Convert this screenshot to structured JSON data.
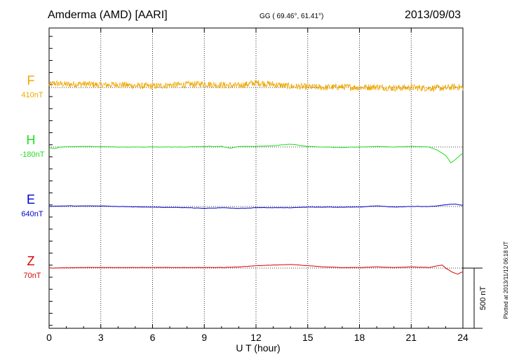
{
  "header": {
    "station": "Amderma (AMD)  [AARI]",
    "coords": "GG ( 69.46°,  61.41°)",
    "date": "2013/09/03"
  },
  "plotted_note": "Plotted at 2013/11/12 06:18 UT",
  "scale_bar_label": "500 nT",
  "colors": {
    "F": "#f0a800",
    "H": "#22dd22",
    "E": "#0000cc",
    "Z": "#dd0000"
  },
  "chart_data": {
    "type": "line",
    "xlabel": "U T (hour)",
    "x_ticks": [
      "0",
      "3",
      "6",
      "9",
      "12",
      "15",
      "18",
      "21",
      "24"
    ],
    "xlim": [
      0,
      24
    ],
    "grid": "dotted vertical every 3 h; dotted baseline per channel",
    "channels": [
      {
        "name": "F",
        "baseline": "410nT",
        "base_y_offset_nT": 0,
        "points": [
          [
            0,
            20
          ],
          [
            0.3,
            35
          ],
          [
            1,
            25
          ],
          [
            2,
            30
          ],
          [
            3,
            20
          ],
          [
            4,
            25
          ],
          [
            5,
            15
          ],
          [
            6,
            10
          ],
          [
            7,
            20
          ],
          [
            8,
            25
          ],
          [
            9,
            30
          ],
          [
            10,
            20
          ],
          [
            11,
            15
          ],
          [
            12,
            40
          ],
          [
            13,
            25
          ],
          [
            14,
            10
          ],
          [
            15,
            5
          ],
          [
            16,
            0
          ],
          [
            17,
            5
          ],
          [
            18,
            0
          ],
          [
            19,
            5
          ],
          [
            20,
            -5
          ],
          [
            21,
            0
          ],
          [
            22,
            -5
          ],
          [
            23,
            -5
          ],
          [
            23.5,
            5
          ],
          [
            24,
            0
          ]
        ],
        "noise_nT": 55
      },
      {
        "name": "H",
        "baseline": "-180nT",
        "points": [
          [
            0,
            -5
          ],
          [
            0.3,
            -15
          ],
          [
            0.6,
            0
          ],
          [
            2,
            5
          ],
          [
            4,
            0
          ],
          [
            6,
            0
          ],
          [
            7,
            0
          ],
          [
            8,
            0
          ],
          [
            9,
            5
          ],
          [
            10,
            5
          ],
          [
            10.5,
            -10
          ],
          [
            11,
            5
          ],
          [
            12,
            5
          ],
          [
            13,
            10
          ],
          [
            14,
            25
          ],
          [
            15,
            5
          ],
          [
            16,
            0
          ],
          [
            17,
            -5
          ],
          [
            18,
            0
          ],
          [
            19,
            5
          ],
          [
            20,
            0
          ],
          [
            21,
            5
          ],
          [
            22,
            0
          ],
          [
            22.5,
            -25
          ],
          [
            23,
            -70
          ],
          [
            23.3,
            -130
          ],
          [
            23.6,
            -100
          ],
          [
            24,
            -50
          ]
        ],
        "noise_nT": 6
      },
      {
        "name": "E",
        "baseline": "640nT",
        "points": [
          [
            0,
            0
          ],
          [
            1,
            5
          ],
          [
            2,
            5
          ],
          [
            3,
            5
          ],
          [
            4,
            0
          ],
          [
            6,
            -5
          ],
          [
            8,
            -10
          ],
          [
            9,
            -15
          ],
          [
            10,
            -10
          ],
          [
            11,
            -15
          ],
          [
            12,
            -10
          ],
          [
            13,
            -10
          ],
          [
            14,
            -10
          ],
          [
            15,
            -5
          ],
          [
            16,
            -5
          ],
          [
            18,
            -5
          ],
          [
            19,
            5
          ],
          [
            20,
            -5
          ],
          [
            21,
            0
          ],
          [
            22,
            0
          ],
          [
            22.5,
            5
          ],
          [
            23,
            15
          ],
          [
            23.5,
            20
          ],
          [
            24,
            10
          ]
        ],
        "noise_nT": 5
      },
      {
        "name": "Z",
        "baseline": "70nT",
        "points": [
          [
            0,
            0
          ],
          [
            2,
            5
          ],
          [
            4,
            5
          ],
          [
            6,
            5
          ],
          [
            8,
            5
          ],
          [
            9,
            5
          ],
          [
            10,
            5
          ],
          [
            11,
            10
          ],
          [
            12,
            20
          ],
          [
            13,
            25
          ],
          [
            14,
            30
          ],
          [
            15,
            20
          ],
          [
            16,
            10
          ],
          [
            17,
            5
          ],
          [
            18,
            5
          ],
          [
            19,
            10
          ],
          [
            20,
            5
          ],
          [
            21,
            10
          ],
          [
            22,
            5
          ],
          [
            22.8,
            25
          ],
          [
            23,
            0
          ],
          [
            23.4,
            -35
          ],
          [
            23.7,
            -50
          ],
          [
            24,
            -30
          ]
        ],
        "noise_nT": 4
      }
    ]
  }
}
